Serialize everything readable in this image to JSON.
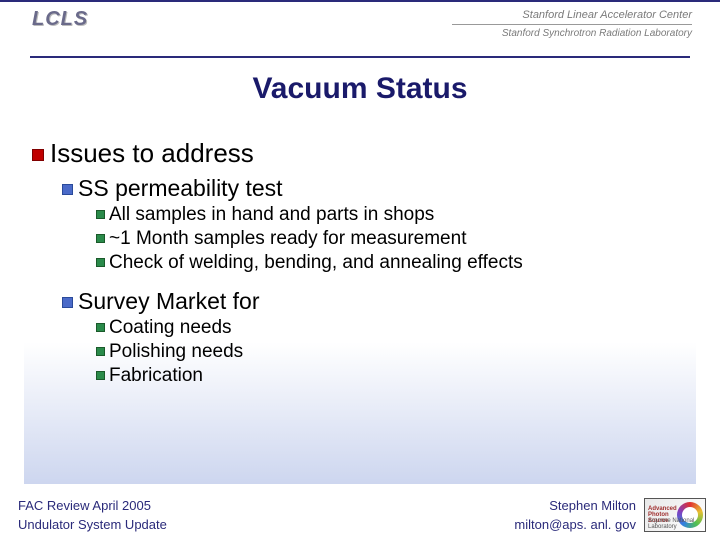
{
  "header": {
    "lcls": "LCLS",
    "slac_line1": "Stanford Linear Accelerator Center",
    "slac_line2": "Stanford Synchrotron Radiation Laboratory"
  },
  "title": "Vacuum Status",
  "content": {
    "issues_heading": "Issues to address",
    "ss_test": "SS permeability test",
    "ss_items": {
      "a": "All samples in hand and parts in shops",
      "b": "~1 Month samples ready for measurement",
      "c": "Check of welding, bending, and annealing effects"
    },
    "survey": "Survey Market for",
    "survey_items": {
      "a": "Coating needs",
      "b": "Polishing needs",
      "c": "Fabrication"
    }
  },
  "footer": {
    "left_line1": "FAC Review April 2005",
    "left_line2": "Undulator System Update",
    "right_line1": "Stephen Milton",
    "right_line2": "milton@aps. anl. gov",
    "aps_line1": "Advanced",
    "aps_line2": "Photon",
    "aps_line3": "Source",
    "anl": "Argonne National Laboratory"
  },
  "colors": {
    "title": "#1a1a6a",
    "bullet1": "#c00000",
    "bullet2": "#4a6ac8",
    "bullet3": "#2a8a4a",
    "footer_text": "#2a2a7a",
    "grad_end": "#cdd6ef"
  }
}
